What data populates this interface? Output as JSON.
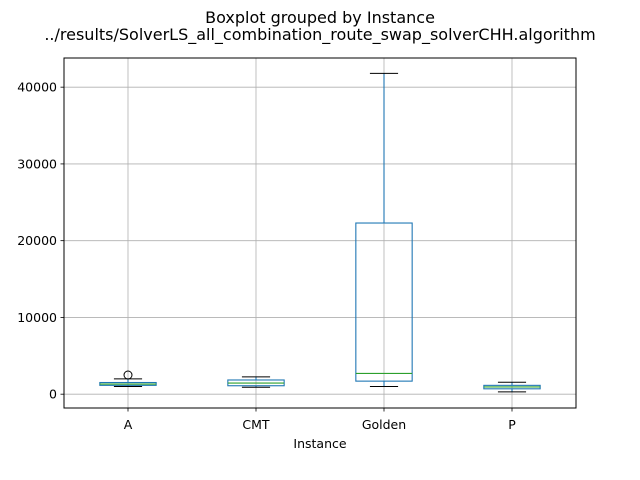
{
  "chart_data": {
    "type": "box",
    "title": "Boxplot grouped by Instance",
    "subtitle": "../results/SolverLS_all_combination_route_swap_solverCHH.algorithm",
    "xlabel": "Instance",
    "ylabel": "",
    "categories": [
      "A",
      "CMT",
      "Golden",
      "P"
    ],
    "ylim": [
      -1800,
      43800
    ],
    "yticks": [
      0,
      10000,
      20000,
      30000,
      40000
    ],
    "ytick_labels": [
      "0",
      "10000",
      "20000",
      "30000",
      "40000"
    ],
    "grid": true,
    "boxes": [
      {
        "category": "A",
        "whisker_low": 1000,
        "q1": 1150,
        "median": 1320,
        "q3": 1520,
        "whisker_high": 2000,
        "outliers": [
          2500
        ]
      },
      {
        "category": "CMT",
        "whisker_low": 900,
        "q1": 1100,
        "median": 1450,
        "q3": 1850,
        "whisker_high": 2250,
        "outliers": []
      },
      {
        "category": "Golden",
        "whisker_low": 1000,
        "q1": 1700,
        "median": 2700,
        "q3": 22300,
        "whisker_high": 41800,
        "outliers": []
      },
      {
        "category": "P",
        "whisker_low": 300,
        "q1": 700,
        "median": 950,
        "q3": 1150,
        "whisker_high": 1550,
        "outliers": []
      }
    ],
    "colors": {
      "box": "#1f77b4",
      "median": "#2ca02c",
      "grid": "#b0b0b0",
      "axis": "#000000"
    }
  }
}
